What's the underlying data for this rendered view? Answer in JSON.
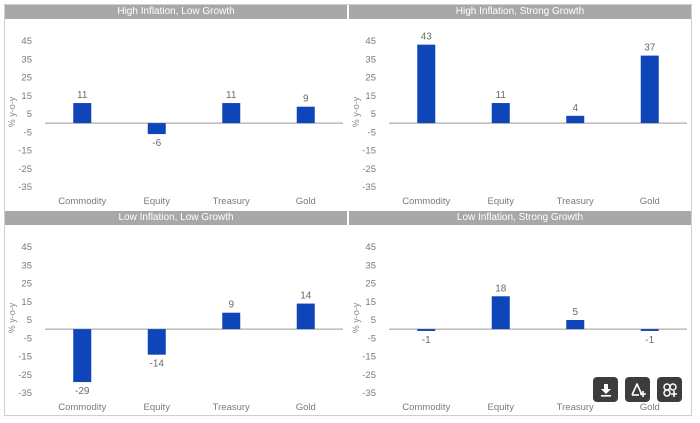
{
  "chart_data": [
    {
      "type": "bar",
      "title": "High Inflation, Low Growth",
      "ylabel": "% y-o-y",
      "categories": [
        "Commodity",
        "Equity",
        "Treasury",
        "Gold"
      ],
      "values": [
        11,
        -6,
        11,
        9
      ],
      "ylim": [
        -35,
        45
      ],
      "yticks": [
        45,
        35,
        25,
        15,
        5,
        -5,
        -15,
        -25,
        -35
      ],
      "bar_color": "#0e45b9",
      "grid": false
    },
    {
      "type": "bar",
      "title": "High Inflation, Strong Growth",
      "ylabel": "% y-o-y",
      "categories": [
        "Commodity",
        "Equity",
        "Treasury",
        "Gold"
      ],
      "values": [
        43,
        11,
        4,
        37
      ],
      "ylim": [
        -35,
        45
      ],
      "yticks": [
        45,
        35,
        25,
        15,
        5,
        -5,
        -15,
        -25,
        -35
      ],
      "bar_color": "#0e45b9",
      "grid": false
    },
    {
      "type": "bar",
      "title": "Low Inflation, Low Growth",
      "ylabel": "% y-o-y",
      "categories": [
        "Commodity",
        "Equity",
        "Treasury",
        "Gold"
      ],
      "values": [
        -29,
        -14,
        9,
        14
      ],
      "ylim": [
        -35,
        45
      ],
      "yticks": [
        45,
        35,
        25,
        15,
        5,
        -5,
        -15,
        -25,
        -35
      ],
      "bar_color": "#0e45b9",
      "grid": false
    },
    {
      "type": "bar",
      "title": "Low Inflation, Strong Growth",
      "ylabel": "% y-o-y",
      "categories": [
        "Commodity",
        "Equity",
        "Treasury",
        "Gold"
      ],
      "values": [
        -1,
        18,
        5,
        -1
      ],
      "ylim": [
        -35,
        45
      ],
      "yticks": [
        45,
        35,
        25,
        15,
        5,
        -5,
        -15,
        -25,
        -35
      ],
      "bar_color": "#0e45b9",
      "grid": false
    }
  ],
  "toolbar": {
    "buttons": [
      {
        "name": "download-button",
        "icon": "download-icon"
      },
      {
        "name": "add-chart-button",
        "icon": "add-chart-icon"
      },
      {
        "name": "add-visual-button",
        "icon": "add-visual-icon"
      }
    ]
  }
}
